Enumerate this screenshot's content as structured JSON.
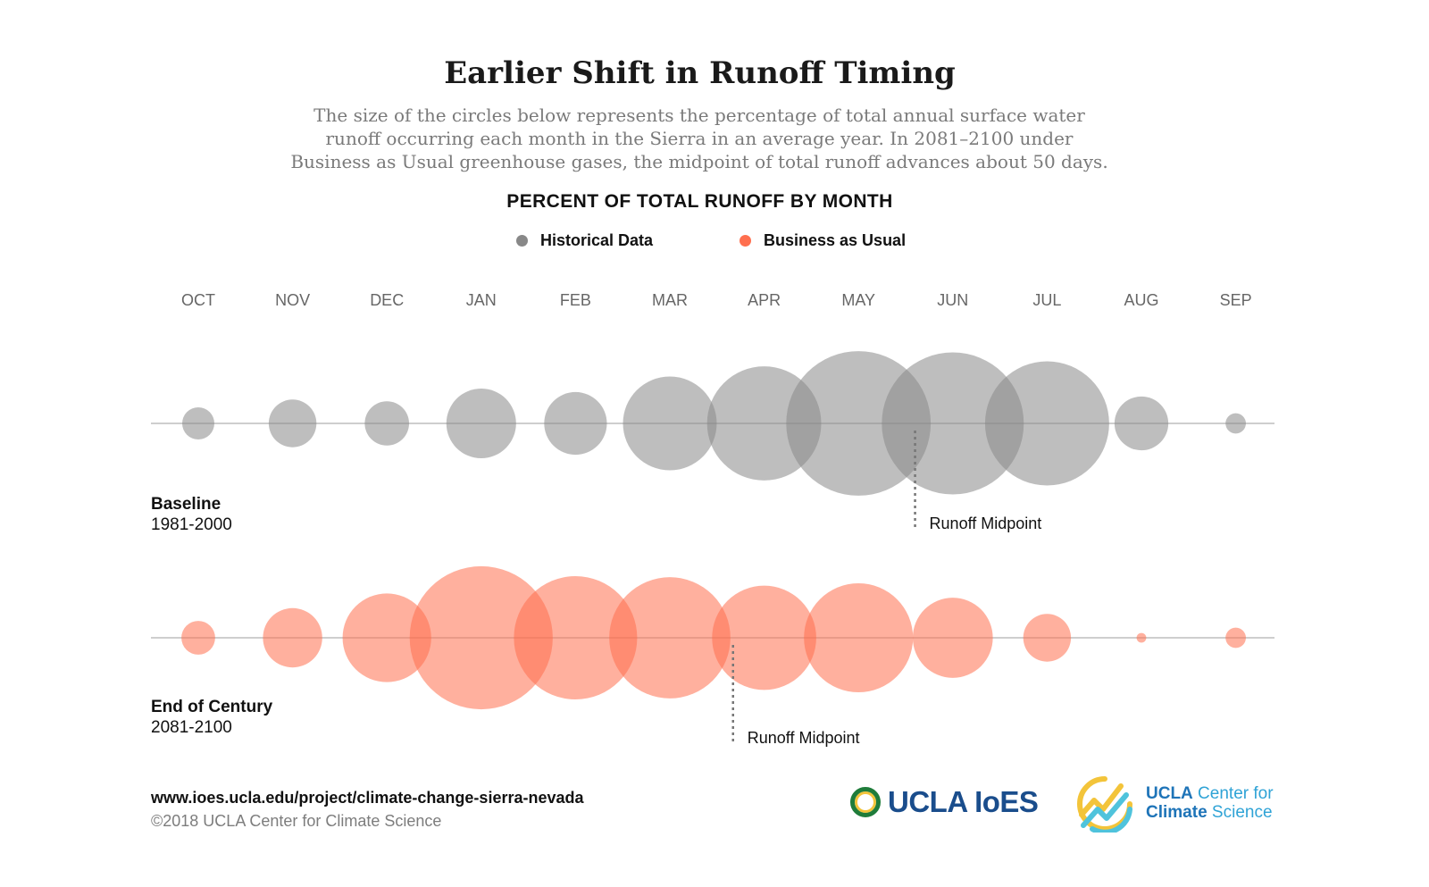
{
  "title": "Earlier Shift in Runoff Timing",
  "subtitle_lines": [
    "The size of the circles below represents the percentage of total annual surface water",
    "runoff occurring each month in the Sierra in an average year. In 2081–2100 under",
    "Business as Usual greenhouse gases, the midpoint of total runoff advances about 50 days."
  ],
  "chart_heading": "PERCENT OF TOTAL RUNOFF BY MONTH",
  "legend": [
    {
      "label": "Historical Data",
      "color": "#888888"
    },
    {
      "label": "Business as Usual",
      "color": "#ff6f4f"
    }
  ],
  "chart_data": {
    "type": "bubble",
    "categories": [
      "OCT",
      "NOV",
      "DEC",
      "JAN",
      "FEB",
      "MAR",
      "APR",
      "MAY",
      "JUN",
      "JUL",
      "AUG",
      "SEP"
    ],
    "series": [
      {
        "name": "Historical Data",
        "row_title": "Baseline",
        "row_years": "1981-2000",
        "color": "#888888",
        "values": [
          1.0,
          2.2,
          1.9,
          4.7,
          3.8,
          8.5,
          12.6,
          20.2,
          19.5,
          14.9,
          2.8,
          0.4
        ],
        "midpoint_label": "Runoff Midpoint",
        "midpoint_month": 7.6
      },
      {
        "name": "Business as Usual",
        "row_title": "End of Century",
        "row_years": "2081-2100",
        "color": "#ff6f4f",
        "values": [
          1.1,
          3.4,
          7.6,
          19.8,
          14.7,
          14.2,
          10.5,
          11.5,
          6.2,
          2.2,
          0.09,
          0.4
        ],
        "midpoint_label": "Runoff Midpoint",
        "midpoint_month": 5.67
      }
    ]
  },
  "footer": {
    "url": "www.ioes.ucla.edu/project/climate-change-sierra-nevada",
    "copyright": "©2018 UCLA Center for Climate Science"
  },
  "logos": {
    "ioes": "UCLA IoES",
    "ccs_line1": "UCLA",
    "ccs_line1b": " Center for",
    "ccs_line2": "Climate",
    "ccs_line2b": " Science"
  }
}
